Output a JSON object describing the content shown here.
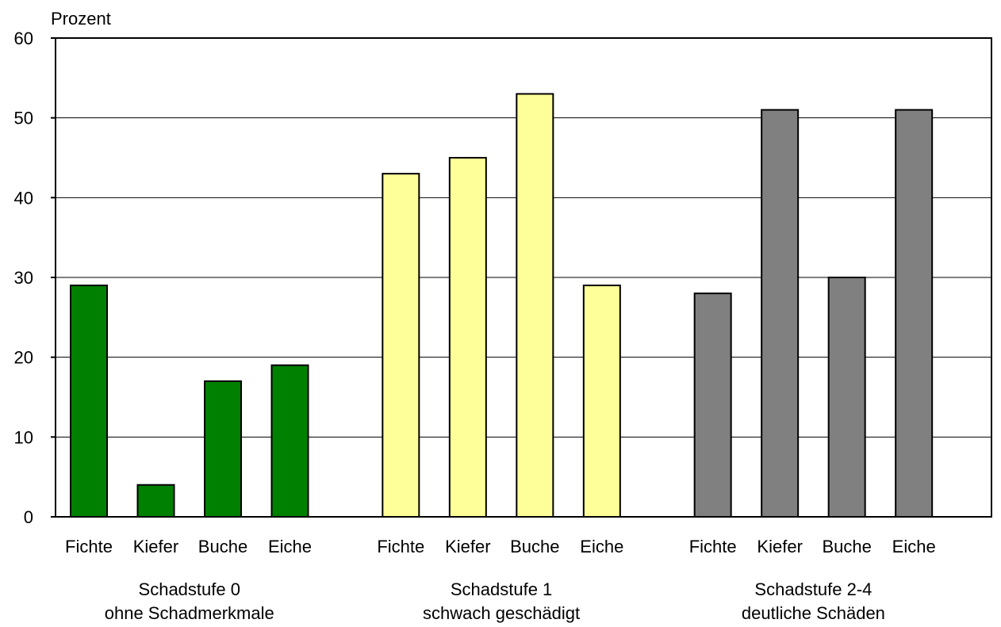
{
  "chart_data": {
    "type": "bar",
    "ylabel": "Prozent",
    "ylim": [
      0,
      60
    ],
    "yticks": [
      0,
      10,
      20,
      30,
      40,
      50,
      60
    ],
    "grid": true,
    "groups": [
      {
        "title": "Schadstufe 0",
        "subtitle": "ohne Schadmerkmale",
        "color": "#008000",
        "categories": [
          "Fichte",
          "Kiefer",
          "Buche",
          "Eiche"
        ],
        "values": [
          29,
          4,
          17,
          19
        ]
      },
      {
        "title": "Schadstufe 1",
        "subtitle": "schwach geschädigt",
        "color": "#FFFF99",
        "categories": [
          "Fichte",
          "Kiefer",
          "Buche",
          "Eiche"
        ],
        "values": [
          43,
          45,
          53,
          29
        ]
      },
      {
        "title": "Schadstufe 2-4",
        "subtitle": "deutliche Schäden",
        "color": "#808080",
        "categories": [
          "Fichte",
          "Kiefer",
          "Buche",
          "Eiche"
        ],
        "values": [
          28,
          51,
          30,
          51
        ]
      }
    ]
  }
}
